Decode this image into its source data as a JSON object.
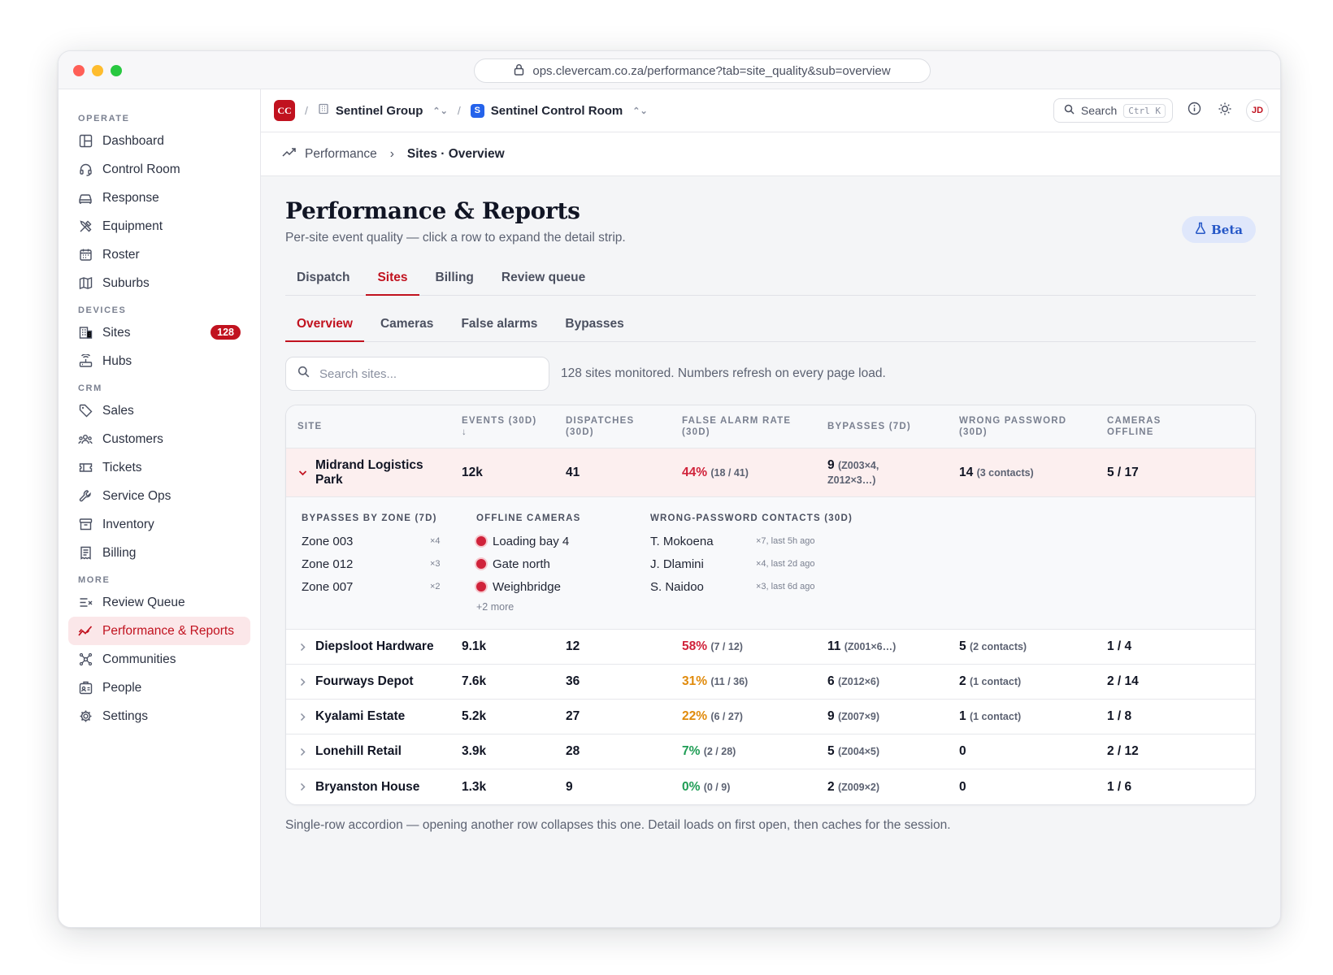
{
  "browser": {
    "url": "ops.clevercam.co.za/performance?tab=site_quality&sub=overview"
  },
  "sidebar": {
    "sections": [
      {
        "label": "OPERATE",
        "items": [
          {
            "label": "Dashboard",
            "icon": "dashboard-icon"
          },
          {
            "label": "Control Room",
            "icon": "headset-icon"
          },
          {
            "label": "Response",
            "icon": "car-icon"
          },
          {
            "label": "Equipment",
            "icon": "tools-icon"
          },
          {
            "label": "Roster",
            "icon": "calendar-icon"
          },
          {
            "label": "Suburbs",
            "icon": "map-icon"
          }
        ]
      },
      {
        "label": "DEVICES",
        "items": [
          {
            "label": "Sites",
            "icon": "building-icon",
            "badge": "128"
          },
          {
            "label": "Hubs",
            "icon": "router-icon"
          }
        ]
      },
      {
        "label": "CRM",
        "items": [
          {
            "label": "Sales",
            "icon": "tag-icon"
          },
          {
            "label": "Customers",
            "icon": "users-icon"
          },
          {
            "label": "Tickets",
            "icon": "ticket-icon"
          },
          {
            "label": "Service Ops",
            "icon": "wrench-icon"
          },
          {
            "label": "Inventory",
            "icon": "archive-icon"
          },
          {
            "label": "Billing",
            "icon": "receipt-icon"
          }
        ]
      },
      {
        "label": "MORE",
        "items": [
          {
            "label": "Review Queue",
            "icon": "review-list-icon"
          },
          {
            "label": "Performance & Reports",
            "icon": "trend-icon",
            "active": true
          },
          {
            "label": "Communities",
            "icon": "network-icon"
          },
          {
            "label": "People",
            "icon": "id-badge-icon"
          },
          {
            "label": "Settings",
            "icon": "gear-icon"
          }
        ]
      }
    ]
  },
  "topbar": {
    "org_logo": "CC",
    "separator": "/",
    "group": "Sentinel Group",
    "room_initial": "S",
    "room": "Sentinel Control Room",
    "search_label": "Search",
    "search_shortcut": "Ctrl K",
    "avatar": "JD"
  },
  "breadcrumb": {
    "parent": "Performance",
    "current": "Sites · Overview"
  },
  "page": {
    "title": "Performance & Reports",
    "subtitle": "Per-site event quality — click a row to expand the detail strip.",
    "beta": "Beta"
  },
  "tabs": [
    "Dispatch",
    "Sites",
    "Billing",
    "Review queue"
  ],
  "active_tab": "Sites",
  "subtabs": [
    "Overview",
    "Cameras",
    "False alarms",
    "Bypasses"
  ],
  "active_subtab": "Overview",
  "search": {
    "placeholder": "Search sites...",
    "note": "128 sites monitored. Numbers refresh on every page load."
  },
  "table": {
    "headers": {
      "site": "SITE",
      "events": "EVENTS (30D)",
      "events_sort": "↓",
      "dispatches_1": "DISPATCHES",
      "dispatches_2": "(30D)",
      "far_1": "FALSE ALARM RATE",
      "far_2": "(30D)",
      "bypasses": "BYPASSES (7D)",
      "wp_1": "WRONG PASSWORD",
      "wp_2": "(30D)",
      "co_1": "CAMERAS",
      "co_2": "OFFLINE"
    },
    "expanded": {
      "site_1": "Midrand Logistics",
      "site_2": "Park",
      "events": "12k",
      "dispatches": "41",
      "far": "44%",
      "far_ratio": "(18 / 41)",
      "far_color": "#d0223a",
      "bypass_count": "9",
      "bypass_zones_1": "(Z003×4,",
      "bypass_zones_2": "Z012×3…)",
      "wrong_pw": "14",
      "wrong_pw_note": "(3 contacts)",
      "cams": "5 / 17"
    },
    "detail": {
      "bypasses_heading": "BYPASSES BY ZONE (7D)",
      "bypasses": [
        {
          "zone": "Zone 003",
          "count": "×4"
        },
        {
          "zone": "Zone 012",
          "count": "×3"
        },
        {
          "zone": "Zone 007",
          "count": "×2"
        }
      ],
      "cameras_heading": "OFFLINE CAMERAS",
      "cameras": [
        "Loading bay 4",
        "Gate north",
        "Weighbridge"
      ],
      "cameras_more": "+2 more",
      "contacts_heading": "WRONG-PASSWORD CONTACTS (30D)",
      "contacts": [
        {
          "name": "T. Mokoena",
          "note": "×7, last 5h ago"
        },
        {
          "name": "J. Dlamini",
          "note": "×4, last 2d ago"
        },
        {
          "name": "S. Naidoo",
          "note": "×3, last 6d ago"
        }
      ]
    },
    "rows": [
      {
        "site": "Diepsloot Hardware",
        "events": "9.1k",
        "dispatches": "12",
        "far": "58%",
        "far_ratio": "(7 / 12)",
        "far_level": "red",
        "bypass_count": "11",
        "bypass_zones": "(Z001×6…)",
        "wrong_pw": "5",
        "wrong_pw_note": "(2 contacts)",
        "cams": "1 / 4"
      },
      {
        "site": "Fourways Depot",
        "events": "7.6k",
        "dispatches": "36",
        "far": "31%",
        "far_ratio": "(11 / 36)",
        "far_level": "orange",
        "bypass_count": "6",
        "bypass_zones": "(Z012×6)",
        "wrong_pw": "2",
        "wrong_pw_note": "(1 contact)",
        "cams": "2 / 14"
      },
      {
        "site": "Kyalami Estate",
        "events": "5.2k",
        "dispatches": "27",
        "far": "22%",
        "far_ratio": "(6 / 27)",
        "far_level": "orange",
        "bypass_count": "9",
        "bypass_zones": "(Z007×9)",
        "wrong_pw": "1",
        "wrong_pw_note": "(1 contact)",
        "cams": "1 / 8"
      },
      {
        "site": "Lonehill Retail",
        "events": "3.9k",
        "dispatches": "28",
        "far": "7%",
        "far_ratio": "(2 / 28)",
        "far_level": "green",
        "bypass_count": "5",
        "bypass_zones": "(Z004×5)",
        "wrong_pw": "0",
        "wrong_pw_note": "",
        "cams": "2 / 12"
      },
      {
        "site": "Bryanston House",
        "events": "1.3k",
        "dispatches": "9",
        "far": "0%",
        "far_ratio": "(0 / 9)",
        "far_level": "green",
        "bypass_count": "2",
        "bypass_zones": "(Z009×2)",
        "wrong_pw": "0",
        "wrong_pw_note": "",
        "cams": "1 / 6"
      }
    ]
  },
  "footnote": "Single-row accordion — opening another row collapses this one. Detail loads on first open, then caches for the session."
}
